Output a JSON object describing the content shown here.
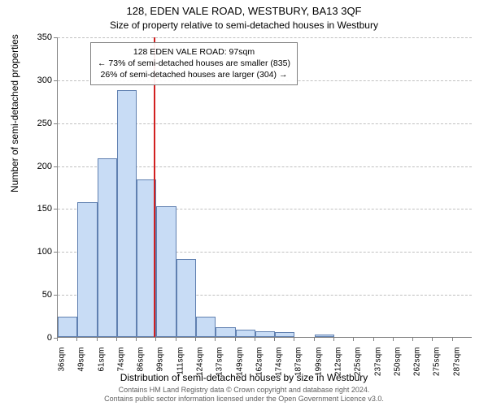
{
  "title_main": "128, EDEN VALE ROAD, WESTBURY, BA13 3QF",
  "title_sub": "Size of property relative to semi-detached houses in Westbury",
  "y_axis_label": "Number of semi-detached properties",
  "x_axis_label": "Distribution of semi-detached houses by size in Westbury",
  "chart": {
    "type": "histogram",
    "ylim": [
      0,
      350
    ],
    "ytick_step": 50,
    "x_tick_labels": [
      "36sqm",
      "49sqm",
      "61sqm",
      "74sqm",
      "86sqm",
      "99sqm",
      "111sqm",
      "124sqm",
      "137sqm",
      "149sqm",
      "162sqm",
      "174sqm",
      "187sqm",
      "199sqm",
      "212sqm",
      "225sqm",
      "237sqm",
      "250sqm",
      "262sqm",
      "275sqm",
      "287sqm"
    ],
    "values": [
      24,
      157,
      208,
      288,
      184,
      152,
      91,
      24,
      11,
      9,
      7,
      6,
      0,
      3,
      0,
      0,
      0,
      0,
      0,
      0,
      0
    ],
    "bar_fill": "#c8dcf5",
    "bar_stroke": "#6080b0",
    "grid_color": "#c0c0c0",
    "axis_color": "#808080",
    "background_color": "#ffffff",
    "marker_line_color": "#d22020",
    "marker_value_index": 5
  },
  "annotation": {
    "line1": "128 EDEN VALE ROAD: 97sqm",
    "line2": "← 73% of semi-detached houses are smaller (835)",
    "line3": "26% of semi-detached houses are larger (304) →"
  },
  "footer_line1": "Contains HM Land Registry data © Crown copyright and database right 2024.",
  "footer_line2": "Contains public sector information licensed under the Open Government Licence v3.0."
}
